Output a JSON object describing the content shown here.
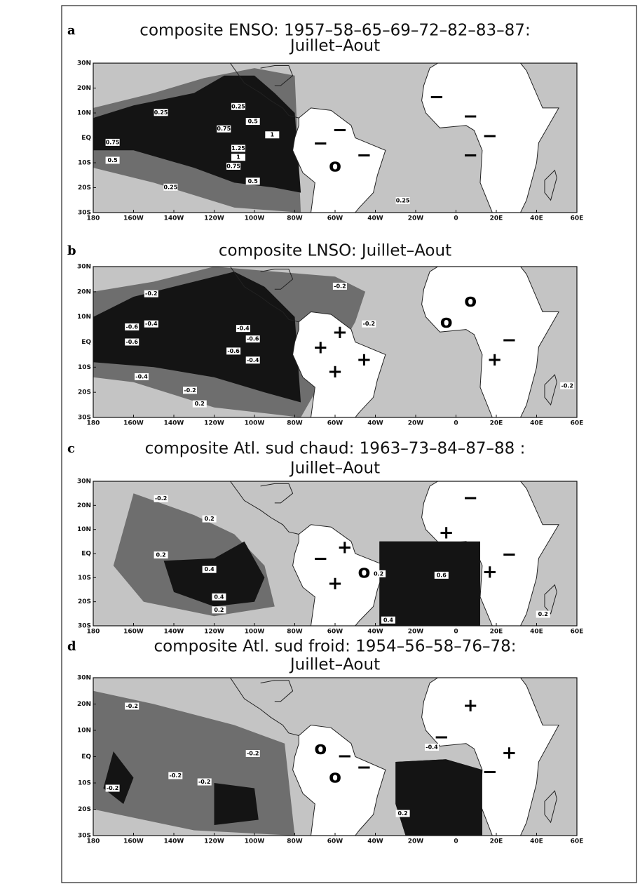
{
  "lat_labels": [
    "30N",
    "20N",
    "10N",
    "EQ",
    "10S",
    "20S",
    "30S"
  ],
  "lon_labels": [
    "180",
    "160W",
    "140W",
    "120W",
    "100W",
    "80W",
    "60W",
    "40W",
    "20W",
    "0",
    "20E",
    "40E",
    "60E"
  ],
  "panels": [
    {
      "letter": "a",
      "title": [
        "composite ENSO: 1957–58–65–69–72–82–83–87:",
        "Juillet–Aout"
      ],
      "contour_labels": [
        "0.25",
        "0.25",
        "0.75",
        "0.5",
        "0.75",
        "0.5",
        "1",
        "1.25",
        "1",
        "0.75",
        "0.5",
        "0.25",
        "0.25"
      ],
      "symbols": [
        "−",
        "−",
        "−",
        "−",
        "−",
        "−",
        "−",
        "o"
      ]
    },
    {
      "letter": "b",
      "title": [
        "composite LNSO: Juillet–Aout"
      ],
      "contour_labels": [
        "-0.2",
        "-0.2",
        "-0.4",
        "-0.6",
        "-0.6",
        "-0.4",
        "-0.6",
        "-0.6",
        "-0.4",
        "-0.4",
        "-0.2",
        "-0.2",
        "0.2",
        "-0.2"
      ],
      "symbols": [
        "o",
        "o",
        "+",
        "+",
        "+",
        "+",
        "+",
        "−"
      ]
    },
    {
      "letter": "c",
      "title": [
        "composite Atl. sud chaud: 1963–73–84–87–88 :",
        "Juillet–Aout"
      ],
      "contour_labels": [
        "-0.2",
        "0.2",
        "0.2",
        "0.4",
        "0.4",
        "0.2",
        "0.2",
        "0.6",
        "0.4",
        "0.2"
      ],
      "symbols": [
        "−",
        "+",
        "+",
        "−",
        "o",
        "+",
        "−",
        "+"
      ]
    },
    {
      "letter": "d",
      "title": [
        "composite Atl. sud froid: 1954–56–58–76–78:",
        "Juillet–Aout"
      ],
      "contour_labels": [
        "-0.2",
        "-0.2",
        "-0.2",
        "-0.2",
        "-0.2",
        "-0.4",
        "0.2"
      ],
      "symbols": [
        "+",
        "−",
        "+",
        "−",
        "o",
        "o",
        "−",
        "−"
      ]
    }
  ]
}
